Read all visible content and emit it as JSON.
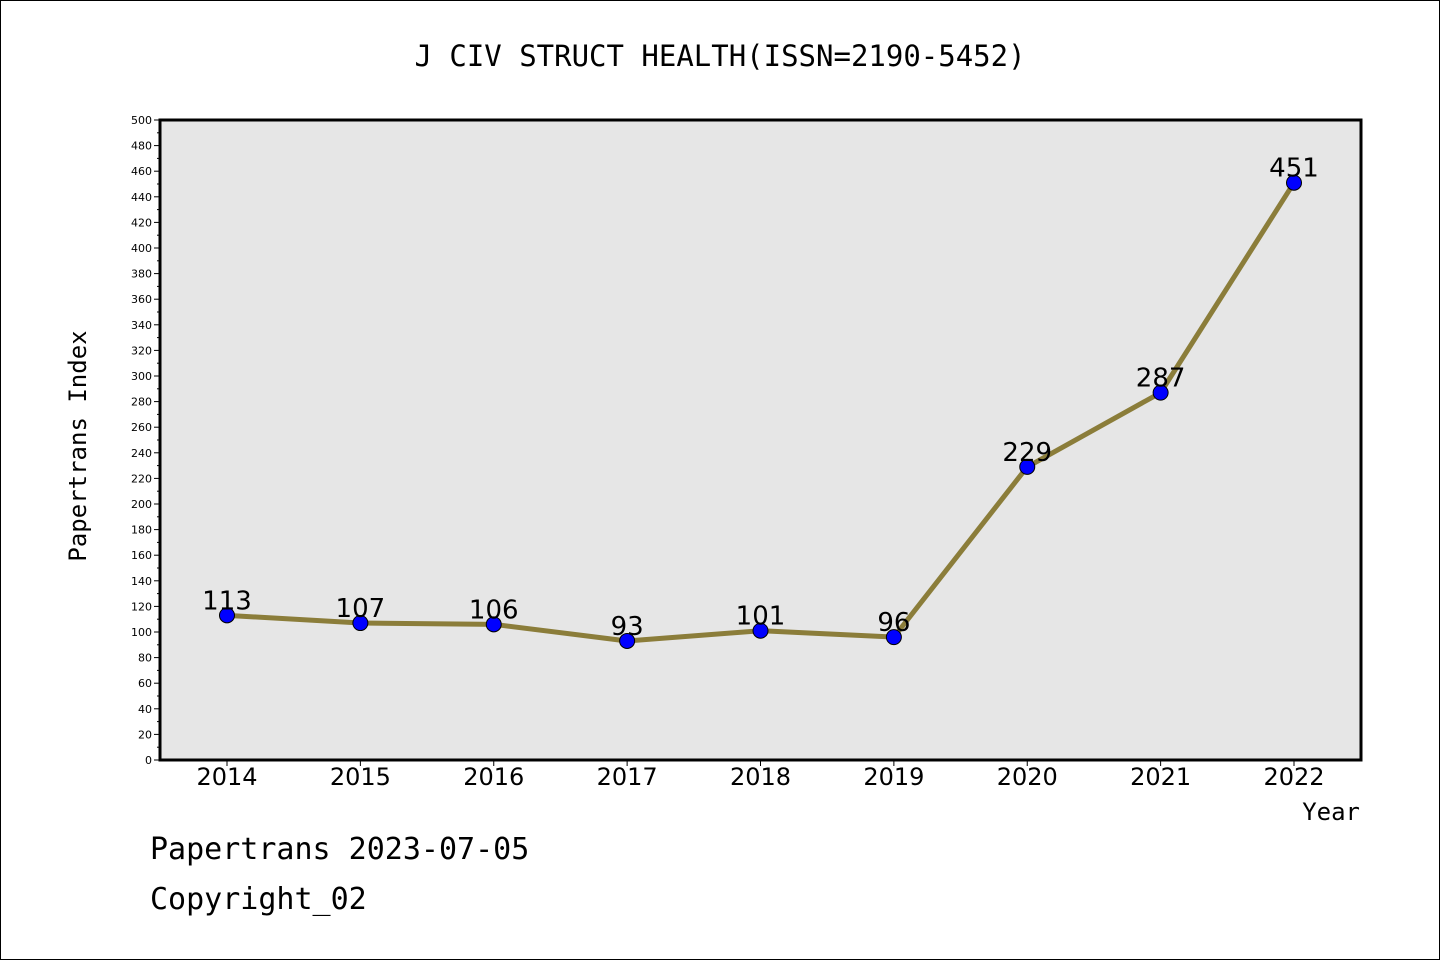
{
  "chart_data": {
    "type": "line",
    "title": "J CIV STRUCT HEALTH(ISSN=2190-5452)",
    "xlabel": "Year",
    "ylabel": "Papertrans Index",
    "categories": [
      "2014",
      "2015",
      "2016",
      "2017",
      "2018",
      "2019",
      "2020",
      "2021",
      "2022"
    ],
    "series": [
      {
        "values": [
          113,
          107,
          106,
          93,
          101,
          96,
          229,
          287,
          451
        ],
        "line_color": "#8b7d3a",
        "marker_color": "#0000ff"
      }
    ],
    "ylim": [
      0,
      500
    ],
    "ytick_step": 20,
    "grid": false,
    "plot_background": "#e6e6e6"
  },
  "footer": {
    "date_text": "Papertrans 2023-07-05",
    "copyright_text": "Copyright_02"
  }
}
